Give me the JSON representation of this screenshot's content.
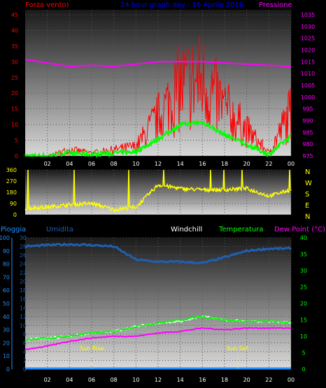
{
  "header": {
    "left_title": "Forza vento)",
    "center_title": "24 hour graph day : 16 Aprile 2016",
    "right_title": "Pressione"
  },
  "wind_panel": {
    "left_ticks": [
      "0",
      "5",
      "10",
      "15",
      "20",
      "25",
      "30",
      "35",
      "40",
      "45"
    ],
    "right_ticks": [
      "975",
      "980",
      "985",
      "990",
      "995",
      "1000",
      "1005",
      "1010",
      "1015",
      "1020",
      "1025",
      "1030",
      "1035"
    ]
  },
  "dir_panel": {
    "left_ticks": [
      "0",
      "90",
      "180",
      "270",
      "360"
    ],
    "compass": [
      "N",
      "W",
      "S",
      "E",
      "N"
    ]
  },
  "temp_panel": {
    "label_pioggia": "Pioggia",
    "label_umidita": "Umidita",
    "label_windchill": "Windchill",
    "label_temperatura": "Temperatura",
    "label_dewpoint": "Dew Point (°C)",
    "left_ticks_rain": [
      "0",
      "10",
      "20",
      "30",
      "40",
      "50",
      "60",
      "70",
      "80",
      "90",
      "100"
    ],
    "left_ticks_hum": [
      "0",
      "2",
      "4",
      "6",
      "8",
      "10",
      "12",
      "14",
      "16",
      "18",
      "20",
      "22",
      "24",
      "26",
      "28",
      "30"
    ],
    "right_ticks": [
      "0",
      "5",
      "10",
      "15",
      "20",
      "25",
      "30",
      "35",
      "40"
    ],
    "sunrise_label": "Sun Rise",
    "sunset_label": "Sun Set"
  },
  "x_ticks": [
    "02",
    "04",
    "06",
    "08",
    "10",
    "12",
    "14",
    "16",
    "18",
    "20",
    "22",
    "00"
  ],
  "colors": {
    "wind": "#ff0000",
    "gust_avg": "#00ff00",
    "pressure": "#ff00ff",
    "direction": "#ffff00",
    "humidity": "#1f5fb0",
    "temperature": "#00ff00",
    "windchill": "#ffffff",
    "dewpoint": "#ff00ff",
    "rain": "#1e90ff"
  },
  "chart_data": [
    {
      "type": "line",
      "title": "24 hour graph day : 16 Aprile 2016",
      "x": [
        "00",
        "02",
        "04",
        "06",
        "08",
        "10",
        "12",
        "14",
        "16",
        "18",
        "20",
        "22",
        "00"
      ],
      "series": [
        {
          "name": "Forza vento)",
          "values": [
            0,
            0,
            2,
            1,
            2,
            3,
            12,
            22,
            24,
            15,
            8,
            1,
            14
          ]
        },
        {
          "name": "Pressione",
          "values": [
            1016,
            1014.5,
            1013,
            1013.5,
            1013,
            1014,
            1015,
            1015,
            1015,
            1014.5,
            1014,
            1013.5,
            1013
          ]
        }
      ],
      "ylim_left": [
        0,
        45
      ],
      "ylim_right": [
        975,
        1035
      ]
    },
    {
      "type": "line",
      "x": [
        "00",
        "02",
        "04",
        "06",
        "08",
        "10",
        "12",
        "14",
        "16",
        "18",
        "20",
        "22",
        "00"
      ],
      "series": [
        {
          "values": [
            50,
            60,
            80,
            90,
            40,
            60,
            240,
            210,
            200,
            200,
            210,
            150,
            200
          ]
        }
      ],
      "ylim": [
        0,
        360
      ]
    },
    {
      "type": "line",
      "x": [
        "00",
        "02",
        "04",
        "06",
        "08",
        "10",
        "12",
        "14",
        "16",
        "18",
        "20",
        "22",
        "00"
      ],
      "series": [
        {
          "name": "Umidita",
          "values": [
            28,
            28.3,
            28.5,
            28.3,
            28,
            25,
            24.5,
            24.5,
            24.2,
            25.5,
            27,
            27.5,
            27.5
          ]
        },
        {
          "name": "Temperatura",
          "values": [
            9,
            9.4,
            10,
            11,
            11.5,
            13,
            14,
            15,
            16,
            15,
            14.5,
            14.5,
            14.2
          ]
        },
        {
          "name": "Windchill",
          "values": [
            9,
            9.4,
            10,
            11,
            11.5,
            13,
            14,
            14.5,
            16,
            15,
            14.5,
            14.5,
            14.2
          ]
        },
        {
          "name": "Dew Point (°C)",
          "values": [
            6,
            7,
            8.5,
            9.5,
            10,
            10,
            11,
            11.5,
            12.5,
            12,
            12.5,
            12.5,
            12.5
          ]
        },
        {
          "name": "Pioggia",
          "values": [
            0,
            0,
            0,
            0,
            0,
            0,
            0,
            0,
            0,
            0,
            0,
            0,
            0
          ]
        }
      ],
      "ylim_left": [
        0,
        30
      ],
      "ylim_right": [
        0,
        40
      ]
    }
  ]
}
